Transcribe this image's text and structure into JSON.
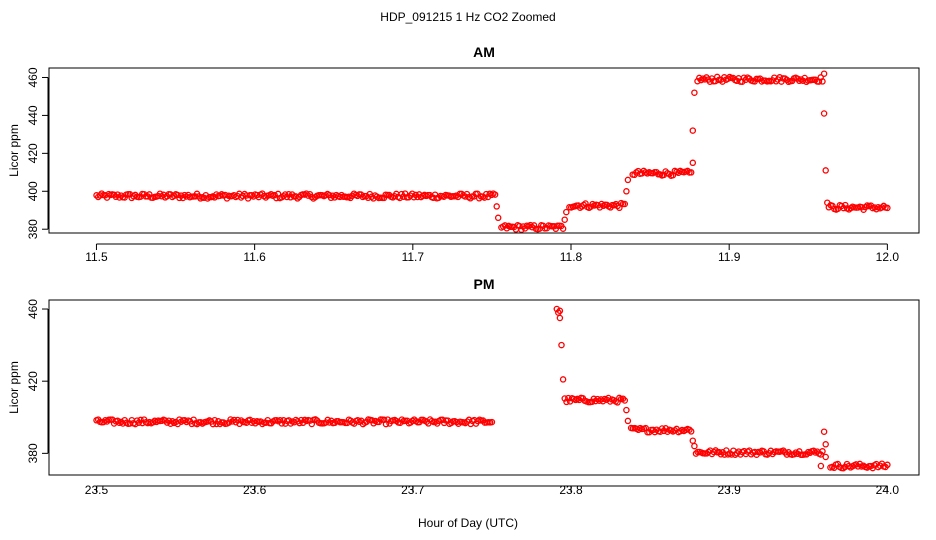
{
  "figure": {
    "title": "HDP_091215  1 Hz CO2 Zoomed",
    "xlabel": "Hour of Day (UTC)"
  },
  "colors": {
    "points": "#ff0000",
    "axes": "#000000",
    "background": "#ffffff"
  },
  "chart_data": [
    {
      "type": "scatter",
      "title": "AM",
      "ylabel": "Licor ppm",
      "xlim": [
        11.47,
        12.02
      ],
      "ylim": [
        378,
        465
      ],
      "xticks": [
        "11.5",
        "11.6",
        "11.7",
        "11.8",
        "11.9",
        "12.0"
      ],
      "yticks": [
        "380",
        "400",
        "420",
        "440",
        "460"
      ],
      "grid": false,
      "marker": "open-circle",
      "segments": [
        {
          "x0": 11.5,
          "x1": 11.752,
          "y": 397.5
        },
        {
          "x0": 11.756,
          "x1": 11.795,
          "y": 381
        },
        {
          "x0": 11.799,
          "x1": 11.834,
          "y": 392.5
        },
        {
          "x0": 11.839,
          "x1": 11.876,
          "y": 409.5
        },
        {
          "x0": 11.88,
          "x1": 11.959,
          "y": 459
        },
        {
          "x0": 11.963,
          "x1": 12.0,
          "y": 391.5
        }
      ],
      "transitions": [
        {
          "x": 11.753,
          "y": 392
        },
        {
          "x": 11.754,
          "y": 386
        },
        {
          "x": 11.796,
          "y": 385
        },
        {
          "x": 11.797,
          "y": 389
        },
        {
          "x": 11.835,
          "y": 400
        },
        {
          "x": 11.836,
          "y": 406
        },
        {
          "x": 11.877,
          "y": 415
        },
        {
          "x": 11.877,
          "y": 432
        },
        {
          "x": 11.878,
          "y": 452
        },
        {
          "x": 11.96,
          "y": 462
        },
        {
          "x": 11.96,
          "y": 441
        },
        {
          "x": 11.961,
          "y": 411
        },
        {
          "x": 11.962,
          "y": 394
        }
      ]
    },
    {
      "type": "scatter",
      "title": "PM",
      "ylabel": "Licor ppm",
      "xlim": [
        23.47,
        24.02
      ],
      "ylim": [
        368,
        465
      ],
      "xticks": [
        "23.5",
        "23.6",
        "23.7",
        "23.8",
        "23.9",
        "24.0"
      ],
      "yticks": [
        "380",
        "420",
        "460"
      ],
      "grid": false,
      "marker": "open-circle",
      "segments": [
        {
          "x0": 23.5,
          "x1": 23.75,
          "y": 397.5
        },
        {
          "x0": 23.796,
          "x1": 23.834,
          "y": 409.5
        },
        {
          "x0": 23.838,
          "x1": 23.876,
          "y": 393
        },
        {
          "x0": 23.879,
          "x1": 23.959,
          "y": 380.5
        },
        {
          "x0": 23.964,
          "x1": 24.0,
          "y": 373
        }
      ],
      "transitions": [
        {
          "x": 23.791,
          "y": 460
        },
        {
          "x": 23.792,
          "y": 458
        },
        {
          "x": 23.793,
          "y": 459
        },
        {
          "x": 23.793,
          "y": 455
        },
        {
          "x": 23.794,
          "y": 440
        },
        {
          "x": 23.795,
          "y": 421
        },
        {
          "x": 23.835,
          "y": 404
        },
        {
          "x": 23.836,
          "y": 398
        },
        {
          "x": 23.877,
          "y": 387
        },
        {
          "x": 23.878,
          "y": 384
        },
        {
          "x": 23.96,
          "y": 392
        },
        {
          "x": 23.961,
          "y": 385
        },
        {
          "x": 23.961,
          "y": 378
        },
        {
          "x": 23.958,
          "y": 373
        }
      ]
    }
  ]
}
